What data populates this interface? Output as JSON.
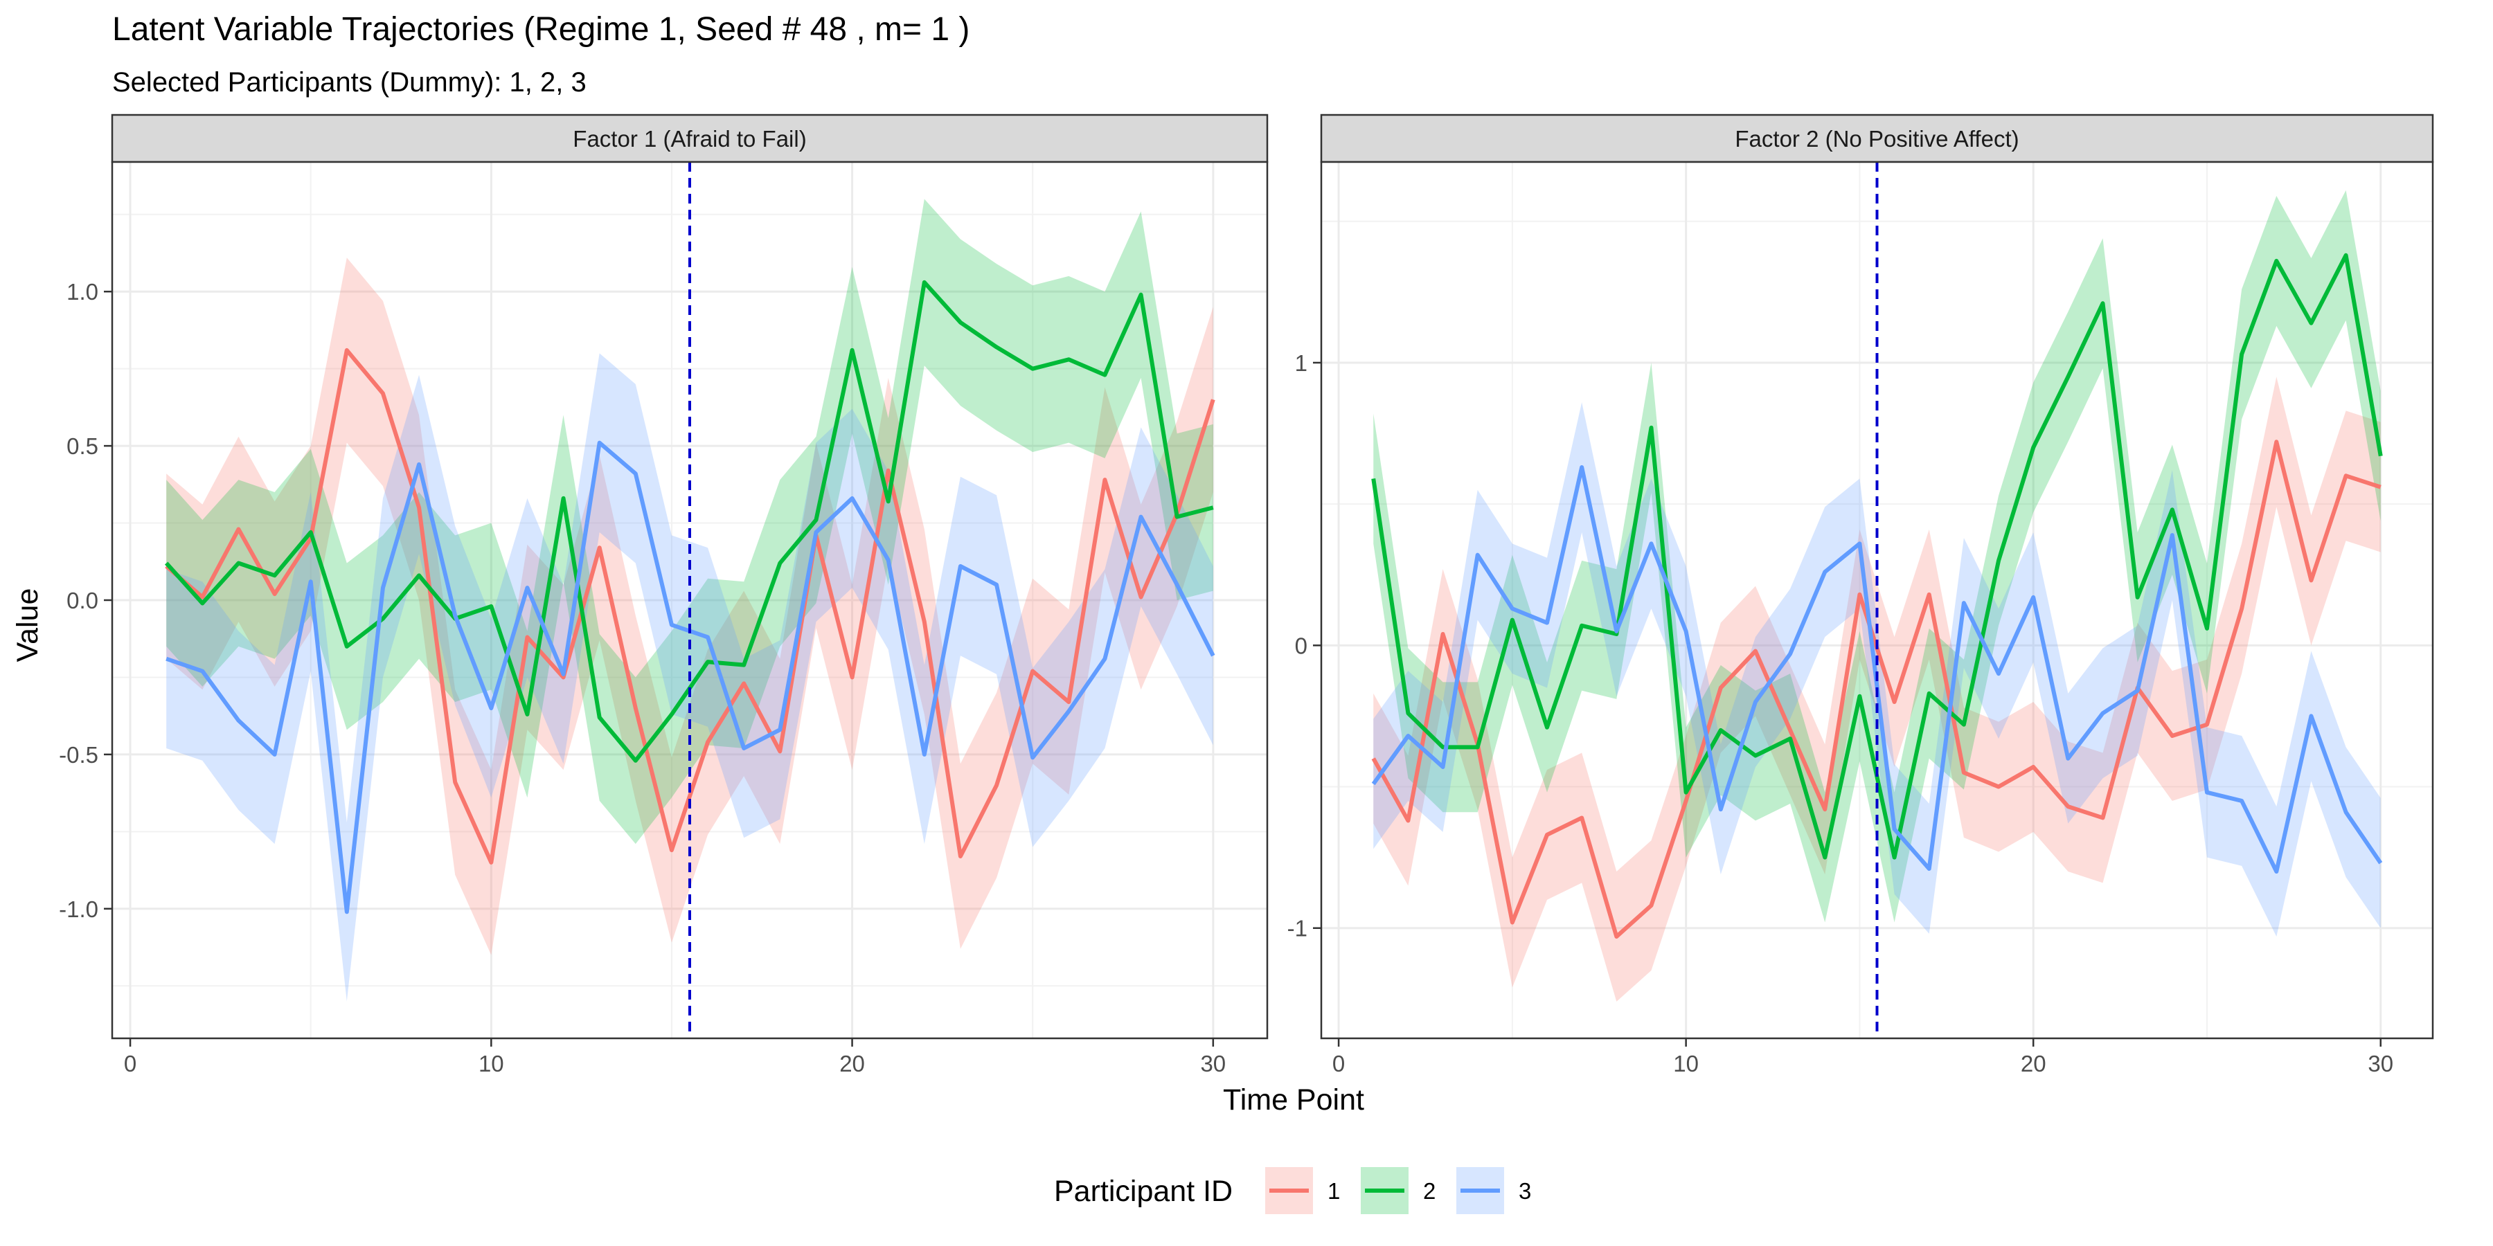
{
  "chart_data": {
    "type": "line",
    "title": "Latent Variable Trajectories (Regime 1, Seed # 48 , m= 1 )",
    "subtitle": "Selected Participants (Dummy): 1, 2, 3",
    "xlabel": "Time Point",
    "ylabel": "Value",
    "xlim": [
      -0.5,
      31.5
    ],
    "xticks": [
      0,
      10,
      20,
      30
    ],
    "regime_change_x": 15.5,
    "grid": true,
    "legend": {
      "title": "Participant ID",
      "position": "bottom",
      "entries": [
        "1",
        "2",
        "3"
      ]
    },
    "colors": {
      "1": "#F8766D",
      "2": "#00BA38",
      "3": "#619CFF",
      "vline": "#0000CC"
    },
    "x": [
      1,
      2,
      3,
      4,
      5,
      6,
      7,
      8,
      9,
      10,
      11,
      12,
      13,
      14,
      15,
      16,
      17,
      18,
      19,
      20,
      21,
      22,
      23,
      24,
      25,
      26,
      27,
      28,
      29,
      30
    ],
    "panels": [
      {
        "strip": "Factor 1 (Afraid to Fail)",
        "ylim": [
          -1.42,
          1.42
        ],
        "yticks": [
          -1.0,
          -0.5,
          0.0,
          0.5,
          1.0
        ],
        "ytick_labels": [
          "-1.0",
          "-0.5",
          "0.0",
          "0.5",
          "1.0"
        ],
        "series": [
          {
            "name": "1",
            "values": [
              0.11,
              0.01,
              0.23,
              0.02,
              0.2,
              0.81,
              0.67,
              0.3,
              -0.59,
              -0.85,
              -0.12,
              -0.25,
              0.17,
              -0.35,
              -0.81,
              -0.46,
              -0.27,
              -0.49,
              0.21,
              -0.25,
              0.42,
              -0.07,
              -0.83,
              -0.6,
              -0.23,
              -0.33,
              0.39,
              0.01,
              0.28,
              0.65
            ],
            "band": 0.3
          },
          {
            "name": "2",
            "values": [
              0.12,
              -0.01,
              0.12,
              0.08,
              0.22,
              -0.15,
              -0.06,
              0.08,
              -0.06,
              -0.02,
              -0.37,
              0.33,
              -0.38,
              -0.52,
              -0.37,
              -0.2,
              -0.21,
              0.12,
              0.26,
              0.81,
              0.32,
              1.03,
              0.9,
              0.82,
              0.75,
              0.78,
              0.73,
              0.99,
              0.27,
              0.3
            ],
            "band": 0.27
          },
          {
            "name": "3",
            "values": [
              -0.19,
              -0.23,
              -0.39,
              -0.5,
              0.06,
              -1.01,
              0.04,
              0.44,
              -0.05,
              -0.35,
              0.04,
              -0.24,
              0.51,
              0.41,
              -0.08,
              -0.12,
              -0.48,
              -0.42,
              0.22,
              0.33,
              0.13,
              -0.5,
              0.11,
              0.05,
              -0.51,
              -0.36,
              -0.19,
              0.27,
              0.05,
              -0.18
            ],
            "band": 0.29
          }
        ]
      },
      {
        "strip": "Factor 2 (No Positive Affect)",
        "ylim": [
          -1.39,
          1.71
        ],
        "yticks": [
          -1,
          0,
          1
        ],
        "ytick_labels": [
          "-1",
          "0",
          "1"
        ],
        "series": [
          {
            "name": "1",
            "values": [
              -0.4,
              -0.62,
              0.04,
              -0.35,
              -0.98,
              -0.67,
              -0.61,
              -1.03,
              -0.92,
              -0.55,
              -0.15,
              -0.02,
              -0.3,
              -0.58,
              0.18,
              -0.2,
              0.18,
              -0.45,
              -0.5,
              -0.43,
              -0.57,
              -0.61,
              -0.15,
              -0.32,
              -0.28,
              0.13,
              0.72,
              0.23,
              0.6,
              0.56
            ],
            "band": 0.23
          },
          {
            "name": "2",
            "values": [
              0.59,
              -0.24,
              -0.36,
              -0.36,
              0.09,
              -0.29,
              0.07,
              0.04,
              0.77,
              -0.52,
              -0.3,
              -0.39,
              -0.33,
              -0.75,
              -0.18,
              -0.75,
              -0.17,
              -0.28,
              0.3,
              0.7,
              0.95,
              1.21,
              0.17,
              0.48,
              0.06,
              1.03,
              1.36,
              1.14,
              1.38,
              0.67
            ],
            "band": 0.23
          },
          {
            "name": "3",
            "values": [
              -0.49,
              -0.32,
              -0.43,
              0.32,
              0.13,
              0.08,
              0.63,
              0.05,
              0.36,
              0.05,
              -0.58,
              -0.2,
              -0.03,
              0.26,
              0.36,
              -0.65,
              -0.79,
              0.15,
              -0.1,
              0.17,
              -0.4,
              -0.24,
              -0.16,
              0.39,
              -0.52,
              -0.55,
              -0.8,
              -0.25,
              -0.59,
              -0.77
            ],
            "band": 0.23
          }
        ]
      }
    ]
  }
}
